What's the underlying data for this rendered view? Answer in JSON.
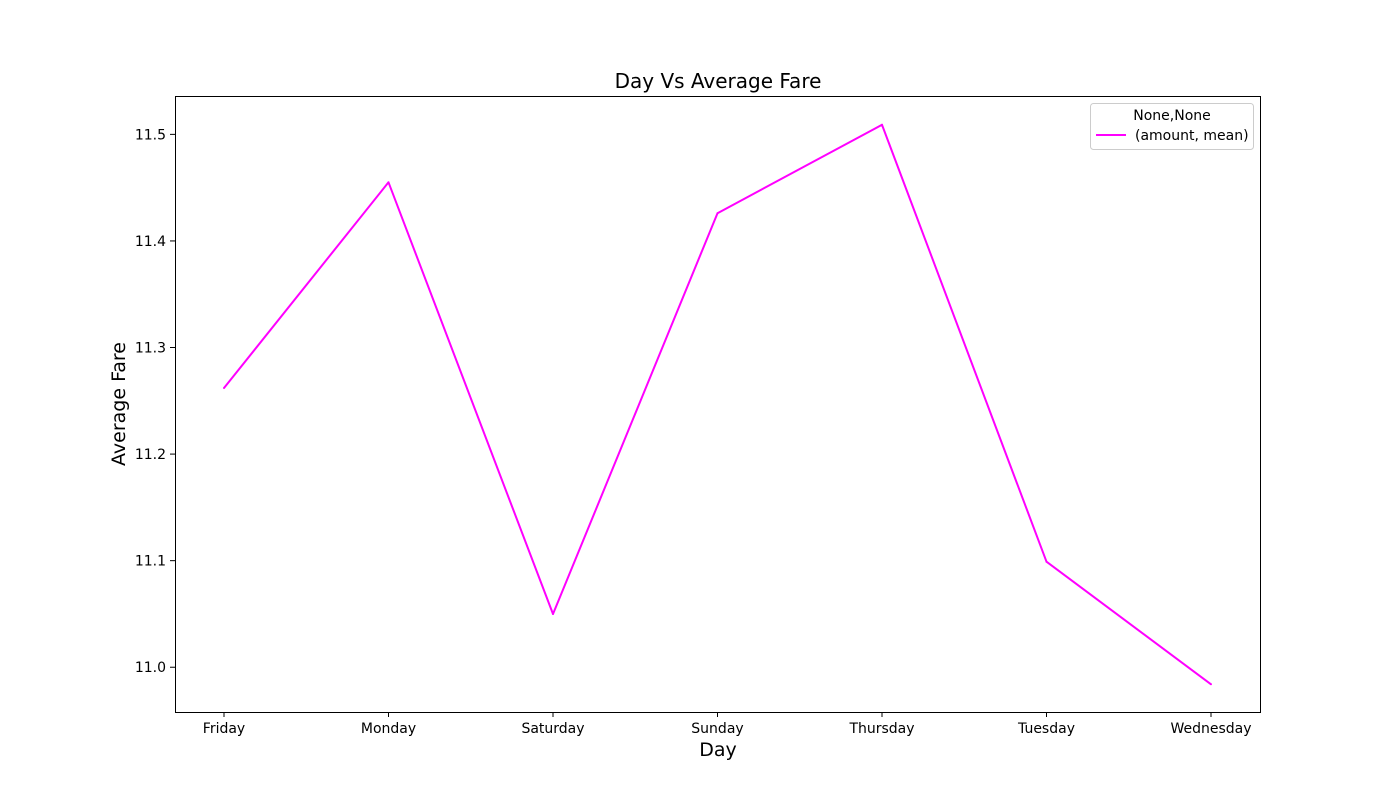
{
  "chart_data": {
    "type": "line",
    "title": "Day Vs Average Fare",
    "xlabel": "Day",
    "ylabel": "Average Fare",
    "categories": [
      "Friday",
      "Monday",
      "Saturday",
      "Sunday",
      "Thursday",
      "Tuesday",
      "Wednesday"
    ],
    "series": [
      {
        "name": "(amount, mean)",
        "values": [
          11.262,
          11.455,
          11.05,
          11.426,
          11.509,
          11.099,
          10.984
        ],
        "color": "#ff00ff"
      }
    ],
    "ylim": [
      10.958,
      11.536
    ],
    "yticks": [
      "11.0",
      "11.1",
      "11.2",
      "11.3",
      "11.4",
      "11.5"
    ],
    "grid": false,
    "legend": {
      "title": "None,None",
      "placement": "top-right"
    }
  }
}
